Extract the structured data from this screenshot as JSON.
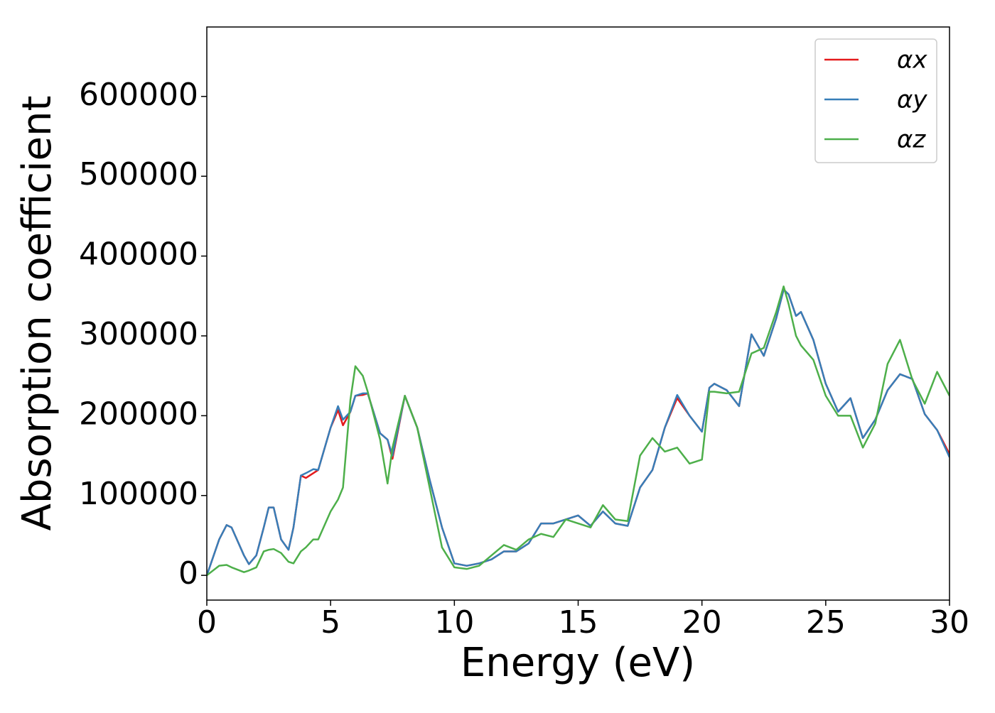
{
  "chart_data": {
    "type": "line",
    "xlabel": "Energy (eV)",
    "ylabel": "Absorption coefficient",
    "x": [
      0,
      0.5,
      0.8,
      1,
      1.5,
      1.7,
      2,
      2.3,
      2.5,
      2.7,
      3,
      3.3,
      3.5,
      3.8,
      4,
      4.3,
      4.5,
      5,
      5.3,
      5.5,
      5.8,
      6,
      6.3,
      6.5,
      7,
      7.3,
      7.5,
      8,
      8.5,
      9,
      9.5,
      10,
      10.5,
      11,
      11.5,
      12,
      12.5,
      13,
      13.5,
      14,
      14.5,
      15,
      15.5,
      16,
      16.5,
      17,
      17.5,
      18,
      18.5,
      19,
      19.5,
      20,
      20.3,
      20.5,
      21,
      21.5,
      22,
      22.5,
      23,
      23.3,
      23.5,
      23.8,
      24,
      24.5,
      25,
      25.5,
      26,
      26.5,
      27,
      27.5,
      28,
      28.5,
      29,
      29.5,
      30
    ],
    "series": [
      {
        "name": "αx",
        "color": "#e41a1c",
        "values": [
          0,
          45000,
          63000,
          60000,
          25000,
          14000,
          25000,
          60000,
          85000,
          85000,
          45000,
          32000,
          60000,
          125000,
          122000,
          128000,
          132000,
          185000,
          207000,
          188000,
          205000,
          225000,
          226000,
          228000,
          178000,
          170000,
          146000,
          225000,
          185000,
          120000,
          60000,
          15000,
          12000,
          15000,
          20000,
          30000,
          30000,
          40000,
          65000,
          65000,
          70000,
          75000,
          62000,
          80000,
          65000,
          62000,
          110000,
          132000,
          185000,
          222000,
          200000,
          180000,
          235000,
          240000,
          232000,
          212000,
          302000,
          275000,
          322000,
          358000,
          352000,
          325000,
          330000,
          295000,
          240000,
          205000,
          222000,
          172000,
          195000,
          232000,
          252000,
          246000,
          202000,
          182000,
          152000
        ]
      },
      {
        "name": "αy",
        "color": "#377eb8",
        "values": [
          0,
          45000,
          63000,
          60000,
          25000,
          14000,
          25000,
          60000,
          85000,
          85000,
          45000,
          32000,
          60000,
          125000,
          128000,
          133000,
          132000,
          185000,
          212000,
          195000,
          205000,
          225000,
          228000,
          228000,
          178000,
          170000,
          150000,
          225000,
          185000,
          120000,
          60000,
          15000,
          12000,
          15000,
          20000,
          30000,
          30000,
          40000,
          65000,
          65000,
          70000,
          75000,
          62000,
          80000,
          65000,
          62000,
          110000,
          132000,
          185000,
          226000,
          200000,
          180000,
          235000,
          240000,
          232000,
          212000,
          302000,
          275000,
          322000,
          358000,
          352000,
          325000,
          330000,
          295000,
          240000,
          205000,
          222000,
          172000,
          195000,
          232000,
          252000,
          246000,
          202000,
          182000,
          148000
        ]
      },
      {
        "name": "αz",
        "color": "#4daf4a",
        "values": [
          0,
          12000,
          13000,
          10000,
          4000,
          6000,
          10000,
          30000,
          32000,
          33000,
          28000,
          17000,
          15000,
          30000,
          35000,
          45000,
          45000,
          80000,
          95000,
          110000,
          220000,
          262000,
          250000,
          230000,
          170000,
          115000,
          160000,
          225000,
          185000,
          110000,
          35000,
          10000,
          8000,
          12000,
          25000,
          38000,
          32000,
          45000,
          52000,
          48000,
          70000,
          65000,
          60000,
          88000,
          70000,
          68000,
          150000,
          172000,
          155000,
          160000,
          140000,
          145000,
          230000,
          230000,
          228000,
          230000,
          278000,
          285000,
          330000,
          362000,
          340000,
          300000,
          288000,
          270000,
          225000,
          200000,
          200000,
          160000,
          190000,
          265000,
          295000,
          245000,
          215000,
          255000,
          225000
        ]
      }
    ],
    "xlim": [
      0,
      30
    ],
    "xticks": [
      0,
      5,
      10,
      15,
      20,
      25,
      30
    ],
    "ylim": [
      -31000,
      687000
    ],
    "yticks": [
      0,
      100000,
      200000,
      300000,
      400000,
      500000,
      600000
    ],
    "legend": "upper right",
    "grid": false
  }
}
